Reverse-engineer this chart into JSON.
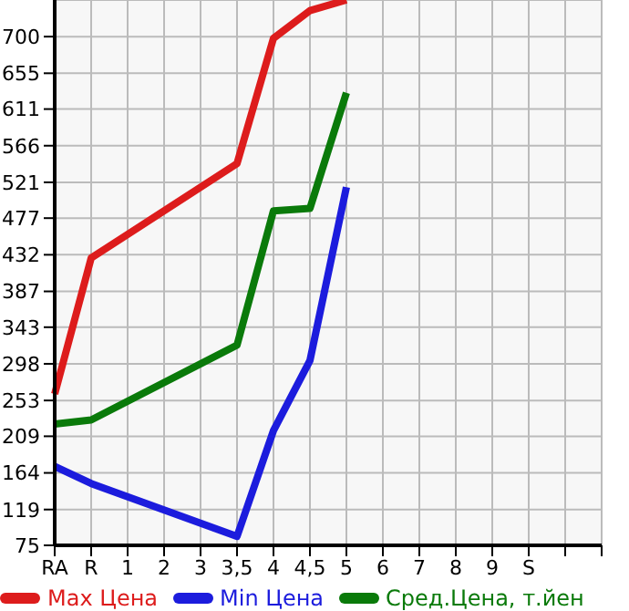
{
  "chart_data": {
    "type": "line",
    "categories": [
      "RA",
      "R",
      "1",
      "2",
      "3",
      "3,5",
      "4",
      "4,5",
      "5",
      "6",
      "7",
      "8",
      "9",
      "S",
      null,
      null
    ],
    "series": [
      {
        "name": "Max Цена",
        "color": "#dd1c1c",
        "values": [
          261,
          428,
          null,
          null,
          null,
          544,
          698,
          732,
          745,
          null,
          null,
          null,
          null,
          null,
          null,
          null
        ]
      },
      {
        "name": "Min Цена",
        "color": "#1c1cdd",
        "values": [
          172,
          151,
          null,
          null,
          null,
          86,
          216,
          302,
          515,
          null,
          null,
          null,
          null,
          null,
          null,
          null
        ]
      },
      {
        "name": "Сред.Цена, т.йен",
        "color": "#0a7a0a",
        "values": [
          224,
          229,
          null,
          null,
          null,
          321,
          486,
          489,
          631,
          null,
          null,
          null,
          null,
          null,
          null,
          null
        ]
      }
    ],
    "ylim": [
      75,
      745
    ],
    "yticks": [
      75,
      119,
      164,
      209,
      253,
      298,
      343,
      387,
      432,
      477,
      521,
      566,
      611,
      655,
      700
    ],
    "grid": true,
    "legend": "bottom",
    "marker": "none",
    "line_style": "solid"
  }
}
